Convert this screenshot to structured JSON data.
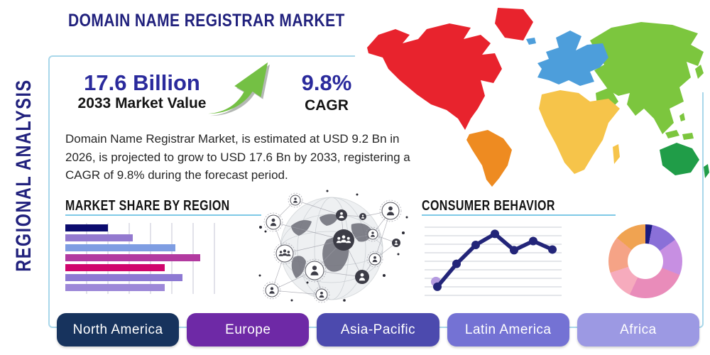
{
  "page": {
    "side_title": "REGIONAL ANALYSIS",
    "title": "DOMAIN NAME REGISTRAR MARKET"
  },
  "stats": {
    "market_value": "17.6 Billion",
    "market_value_label": "2033 Market Value",
    "cagr": "9.8%",
    "cagr_label": "CAGR"
  },
  "description": "Domain Name Registrar Market, is estimated at USD 9.2 Bn in 2026, is projected to grow to USD 17.6 Bn by 2033, registering a CAGR of 9.8% during the forecast period.",
  "sections": {
    "market_share_title": "MARKET SHARE BY REGION",
    "consumer_title": "CONSUMER BEHAVIOR"
  },
  "buttons": [
    {
      "label": "North America",
      "color": "#17335d"
    },
    {
      "label": "Europe",
      "color": "#6e29a6"
    },
    {
      "label": "Asia-Pacific",
      "color": "#4c4aae"
    },
    {
      "label": "Latin America",
      "color": "#7472d4"
    },
    {
      "label": "Africa",
      "color": "#9c99e3"
    }
  ],
  "colors": {
    "navy_text": "#21217d",
    "stat_text": "#2a2a9c",
    "frame_border": "#a9d7ea",
    "section_rule": "#7fc9e6",
    "arrow_green": "#74c044",
    "arrow_shadow": "#b4b8b4"
  },
  "map_colors": {
    "north_america": "#e8232d",
    "greenland": "#e8232d",
    "south_america": "#ee8b21",
    "europe": "#4d9edb",
    "africa": "#f6c44a",
    "asia": "#7cc63e",
    "middle_east": "#7cc63e",
    "australia": "#209d48",
    "new_zealand": "#209d48"
  },
  "chart_data": [
    {
      "type": "bar",
      "title": "MARKET SHARE BY REGION",
      "orientation": "horizontal",
      "categories": [
        "",
        "",
        "",
        "",
        "",
        "",
        ""
      ],
      "values": [
        12,
        19,
        31,
        38,
        28,
        33,
        28
      ],
      "xlim": [
        0,
        43
      ],
      "grid": true,
      "grid_step": 6,
      "colors": [
        "#0b0b6e",
        "#9379cf",
        "#7e9de2",
        "#b23aa0",
        "#d0056c",
        "#8d79d3",
        "#9d88d8"
      ],
      "note": "unlabeled decorative bars, values estimated in relative share units"
    },
    {
      "type": "line",
      "title": "CONSUMER BEHAVIOR",
      "x": [
        1,
        2,
        3,
        4,
        5,
        6,
        7
      ],
      "values": [
        1.1,
        4.6,
        7.5,
        9.2,
        6.7,
        8.1,
        6.8
      ],
      "ylim": [
        0,
        10
      ],
      "grid": true,
      "line_color": "#232579",
      "first_point_halo_color": "#b49ae0",
      "note": "unlabeled trend line, values estimated from gridlines"
    },
    {
      "type": "pie",
      "donut": true,
      "start_angle_deg": 0,
      "values": [
        3,
        12,
        16,
        26,
        13,
        16,
        14
      ],
      "labels": [
        "",
        "",
        "",
        "",
        "",
        "",
        ""
      ],
      "colors": [
        "#1b1b80",
        "#8a70d8",
        "#c78fe2",
        "#e98cba",
        "#f6abbd",
        "#f5a386",
        "#f0a351"
      ],
      "note": "unlabeled donut, slice percents estimated from angles"
    }
  ]
}
